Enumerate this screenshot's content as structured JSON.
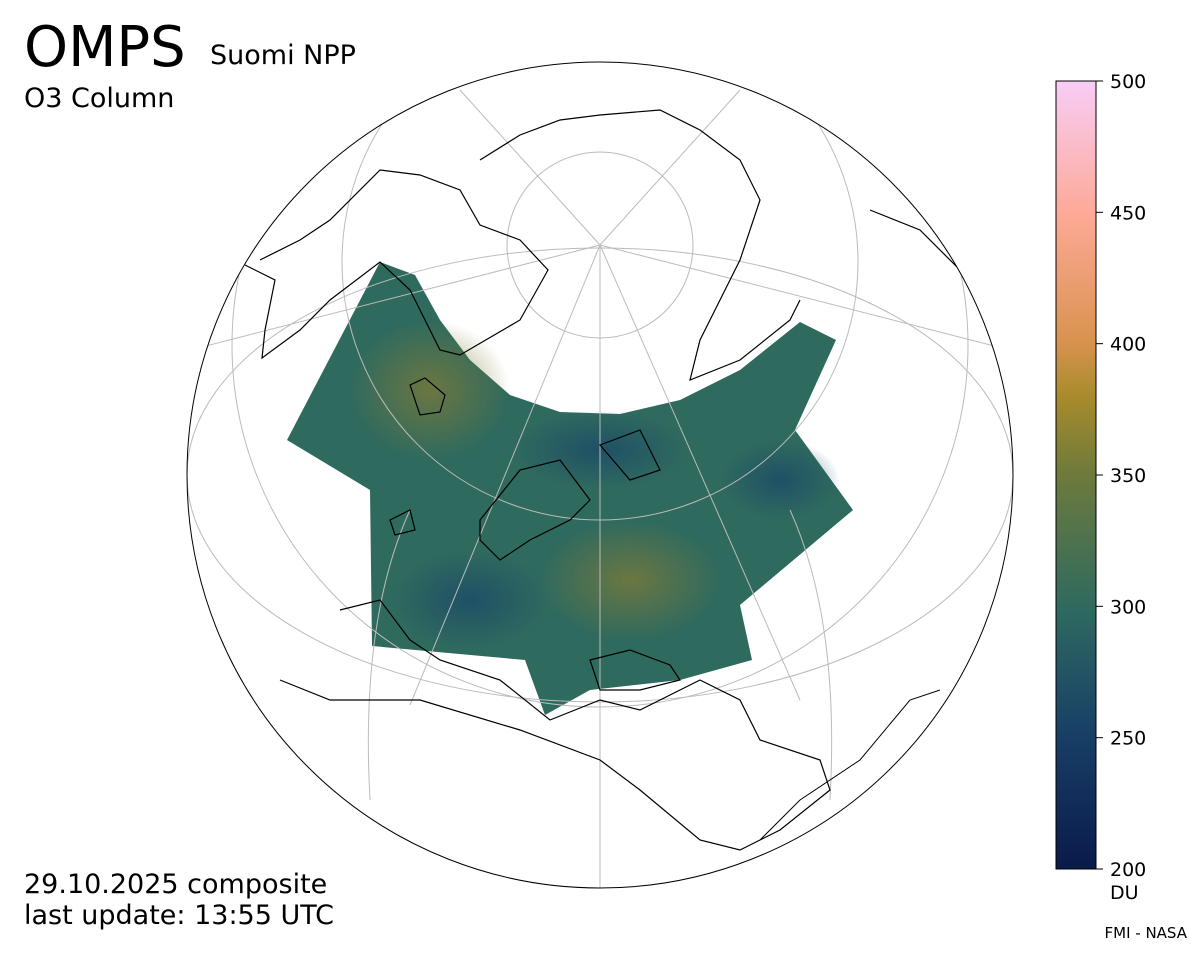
{
  "header": {
    "title": "OMPS",
    "subtitle": "Suomi NPP",
    "product": "O3 Column"
  },
  "footer": {
    "date": "29.10.2025 composite",
    "update": "last update: 13:55 UTC",
    "credit": "FMI - NASA"
  },
  "colorbar": {
    "lim": [
      200,
      500
    ],
    "ticks": [
      200,
      250,
      300,
      350,
      400,
      450,
      500
    ],
    "unit": "DU"
  }
}
